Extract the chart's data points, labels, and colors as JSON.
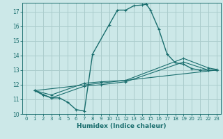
{
  "title": "",
  "xlabel": "Humidex (Indice chaleur)",
  "bg_color": "#cce8e8",
  "grid_color": "#aacccc",
  "line_color": "#1a6e6e",
  "xlim": [
    -0.5,
    23.5
  ],
  "ylim": [
    10,
    17.6
  ],
  "yticks": [
    10,
    11,
    12,
    13,
    14,
    15,
    16,
    17
  ],
  "xticks": [
    0,
    1,
    2,
    3,
    4,
    5,
    6,
    7,
    8,
    9,
    10,
    11,
    12,
    13,
    14,
    15,
    16,
    17,
    18,
    19,
    20,
    21,
    22,
    23
  ],
  "line1_x": [
    1,
    2,
    3,
    4,
    5,
    6,
    7,
    8,
    10,
    11,
    12,
    13,
    14,
    14.5,
    15,
    16,
    17,
    18,
    19,
    20,
    21,
    22,
    23
  ],
  "line1_y": [
    11.6,
    11.3,
    11.1,
    11.1,
    10.8,
    10.3,
    10.2,
    14.1,
    16.1,
    17.1,
    17.1,
    17.4,
    17.45,
    17.5,
    17.1,
    15.8,
    14.1,
    13.5,
    13.4,
    13.1,
    13.0,
    13.0,
    13.0
  ],
  "line2_x": [
    1,
    3,
    7,
    9,
    12,
    19,
    22,
    23
  ],
  "line2_y": [
    11.6,
    11.3,
    12.1,
    12.2,
    12.3,
    13.8,
    13.15,
    13.05
  ],
  "line3_x": [
    1,
    23
  ],
  "line3_y": [
    11.6,
    13.0
  ],
  "line4_x": [
    1,
    3,
    7,
    9,
    12,
    19,
    22,
    23
  ],
  "line4_y": [
    11.6,
    11.1,
    11.9,
    12.0,
    12.2,
    13.55,
    13.0,
    13.0
  ]
}
